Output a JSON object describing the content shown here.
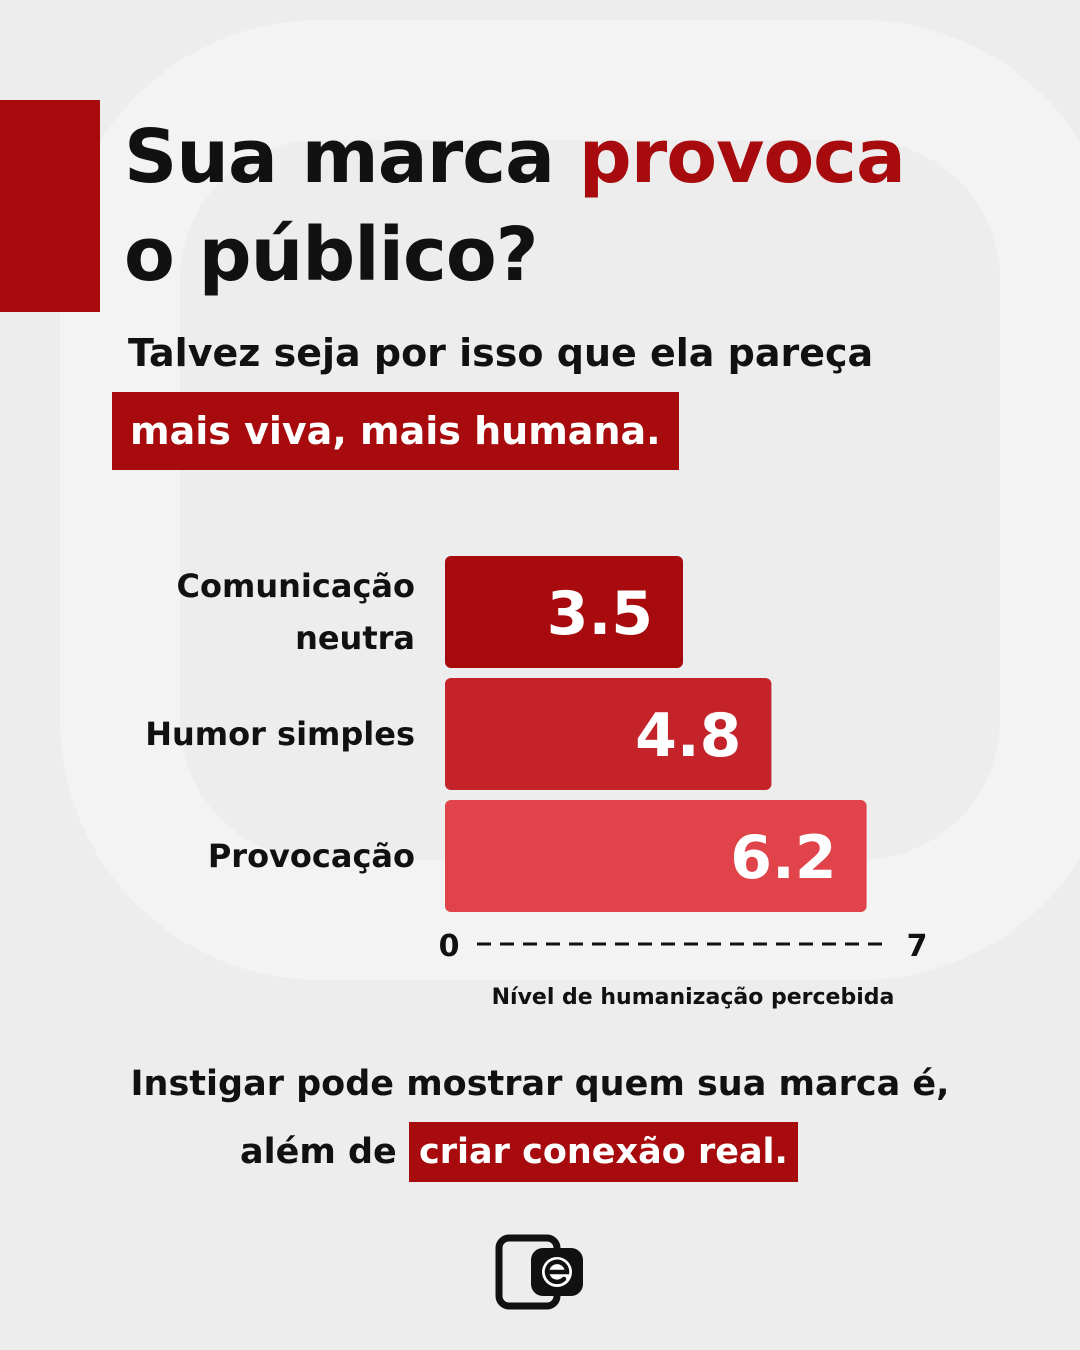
{
  "headline": {
    "part1": "Sua marca ",
    "highlight": "provoca",
    "part2": "o público?"
  },
  "subtitle": {
    "line1": "Talvez seja por isso que ela pareça",
    "highlight": "mais viva, mais humana."
  },
  "chart_data": {
    "type": "bar",
    "orientation": "horizontal",
    "categories": [
      "Comunicação neutra",
      "Humor simples",
      "Provocação"
    ],
    "values": [
      3.5,
      4.8,
      6.2
    ],
    "xlim": [
      0,
      7
    ],
    "xlabel": "Nível de humanização percebida",
    "tick_labels": [
      "0",
      "7"
    ],
    "bar_colors": [
      "#a80b0d",
      "#c4232a",
      "#e0434a"
    ],
    "grid": false
  },
  "footer": {
    "line1": "Instigar pode mostrar quem sua marca é,",
    "line2_prefix": "além de",
    "highlight": "criar conexão real."
  },
  "colors": {
    "accent": "#a80b0d",
    "background": "#ededed",
    "text": "#111111"
  },
  "logo": {
    "icon": "brand-e-icon"
  }
}
